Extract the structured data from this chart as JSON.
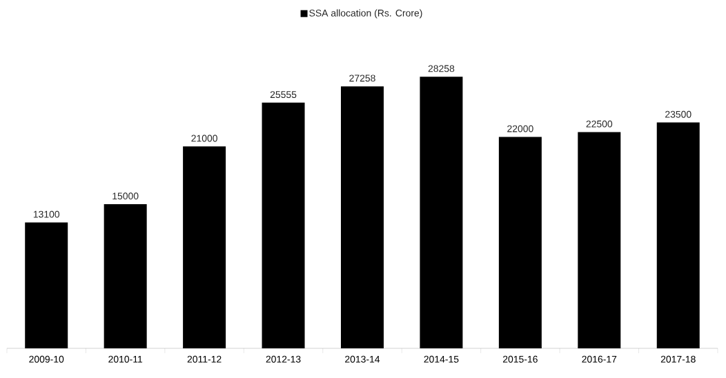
{
  "chart_data": {
    "type": "bar",
    "categories": [
      "2009-10",
      "2010-11",
      "2011-12",
      "2012-13",
      "2013-14",
      "2014-15",
      "2015-16",
      "2016-17",
      "2017-18"
    ],
    "series": [
      {
        "name": "SSA allocation (Rs. Crore)",
        "color": "#000000",
        "values": [
          13100,
          15000,
          21000,
          25555,
          27258,
          28258,
          22000,
          22500,
          23500
        ]
      }
    ],
    "data_labels": true,
    "legend": "top"
  }
}
